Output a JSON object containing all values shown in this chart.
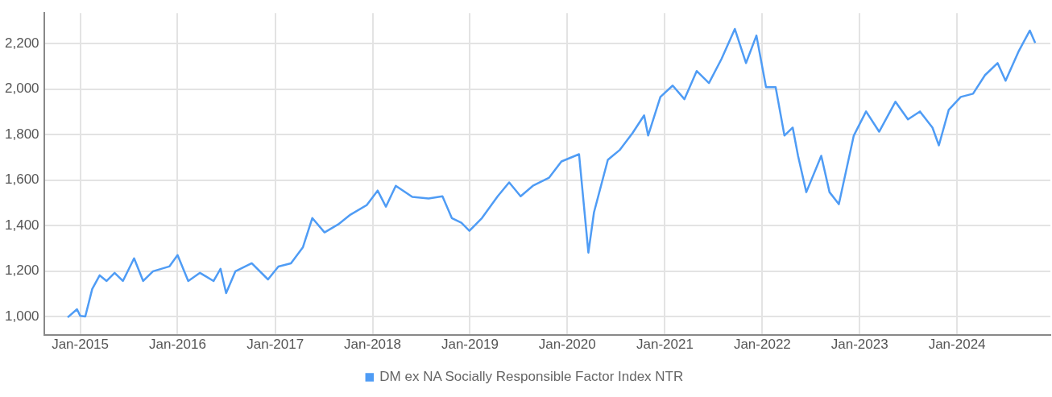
{
  "chart_data": {
    "type": "line",
    "legend": "bottom",
    "grid": true,
    "marker": "none",
    "line_style": "solid",
    "xlim": [
      "2014-08-18",
      "2024-12-16"
    ],
    "ylim": [
      920,
      2335
    ],
    "xticks": [
      {
        "value": "2015-01-01",
        "label": "Jan-2015"
      },
      {
        "value": "2016-01-01",
        "label": "Jan-2016"
      },
      {
        "value": "2017-01-01",
        "label": "Jan-2017"
      },
      {
        "value": "2018-01-01",
        "label": "Jan-2018"
      },
      {
        "value": "2019-01-01",
        "label": "Jan-2019"
      },
      {
        "value": "2020-01-01",
        "label": "Jan-2020"
      },
      {
        "value": "2021-01-01",
        "label": "Jan-2021"
      },
      {
        "value": "2022-01-01",
        "label": "Jan-2022"
      },
      {
        "value": "2023-01-01",
        "label": "Jan-2023"
      },
      {
        "value": "2024-01-01",
        "label": "Jan-2024"
      }
    ],
    "yticks": [
      {
        "value": 1000,
        "label": "1,000"
      },
      {
        "value": 1200,
        "label": "1,200"
      },
      {
        "value": 1400,
        "label": "1,400"
      },
      {
        "value": 1600,
        "label": "1,600"
      },
      {
        "value": 1800,
        "label": "1,800"
      },
      {
        "value": 2000,
        "label": "2,000"
      },
      {
        "value": 2200,
        "label": "2,200"
      }
    ],
    "x": [
      "2014-11-15",
      "2014-12-20",
      "2015-01-01",
      "2015-01-20",
      "2015-02-15",
      "2015-03-15",
      "2015-04-10",
      "2015-05-10",
      "2015-06-10",
      "2015-07-22",
      "2015-08-25",
      "2015-10-01",
      "2015-12-01",
      "2016-01-01",
      "2016-02-10",
      "2016-03-25",
      "2016-05-15",
      "2016-06-10",
      "2016-07-01",
      "2016-08-05",
      "2016-10-05",
      "2016-12-05",
      "2017-01-13",
      "2017-03-01",
      "2017-04-15",
      "2017-05-20",
      "2017-07-05",
      "2017-08-25",
      "2017-10-10",
      "2017-12-10",
      "2018-01-20",
      "2018-02-20",
      "2018-03-29",
      "2018-05-30",
      "2018-07-30",
      "2018-09-20",
      "2018-10-25",
      "2018-11-30",
      "2018-12-30",
      "2019-02-15",
      "2019-04-15",
      "2019-05-28",
      "2019-07-10",
      "2019-08-25",
      "2019-10-25",
      "2019-12-10",
      "2020-02-14",
      "2020-03-10",
      "2020-03-20",
      "2020-04-10",
      "2020-06-01",
      "2020-07-15",
      "2020-09-01",
      "2020-10-15",
      "2020-10-30",
      "2020-12-15",
      "2021-01-30",
      "2021-03-15",
      "2021-04-30",
      "2021-06-15",
      "2021-08-01",
      "2021-09-20",
      "2021-11-01",
      "2021-12-10",
      "2022-01-15",
      "2022-02-20",
      "2022-03-25",
      "2022-04-25",
      "2022-05-15",
      "2022-06-15",
      "2022-08-10",
      "2022-09-10",
      "2022-10-15",
      "2022-12-10",
      "2023-01-25",
      "2023-03-15",
      "2023-05-15",
      "2023-07-01",
      "2023-08-15",
      "2023-10-01",
      "2023-10-25",
      "2023-12-01",
      "2024-01-15",
      "2024-03-01",
      "2024-04-15",
      "2024-06-01",
      "2024-07-01",
      "2024-08-20",
      "2024-09-30",
      "2024-10-20"
    ],
    "series": [
      {
        "name": "DM ex NA Socially Responsible Factor Index NTR",
        "color": "#4f9cf5",
        "values": [
          996,
          1032,
          1003,
          1000,
          1121,
          1181,
          1156,
          1192,
          1156,
          1256,
          1156,
          1199,
          1220,
          1270,
          1156,
          1192,
          1156,
          1210,
          1103,
          1199,
          1234,
          1163,
          1220,
          1234,
          1305,
          1433,
          1370,
          1405,
          1448,
          1490,
          1554,
          1483,
          1575,
          1526,
          1519,
          1529,
          1433,
          1412,
          1377,
          1433,
          1529,
          1590,
          1529,
          1575,
          1611,
          1682,
          1714,
          1405,
          1281,
          1458,
          1689,
          1732,
          1806,
          1885,
          1796,
          1966,
          2016,
          1956,
          2080,
          2027,
          2133,
          2265,
          2115,
          2236,
          2009,
          2009,
          1796,
          1831,
          1707,
          1547,
          1707,
          1547,
          1494,
          1796,
          1902,
          1813,
          1945,
          1867,
          1902,
          1831,
          1753,
          1909,
          1966,
          1980,
          2062,
          2115,
          2037,
          2169,
          2258,
          2204
        ]
      }
    ]
  }
}
